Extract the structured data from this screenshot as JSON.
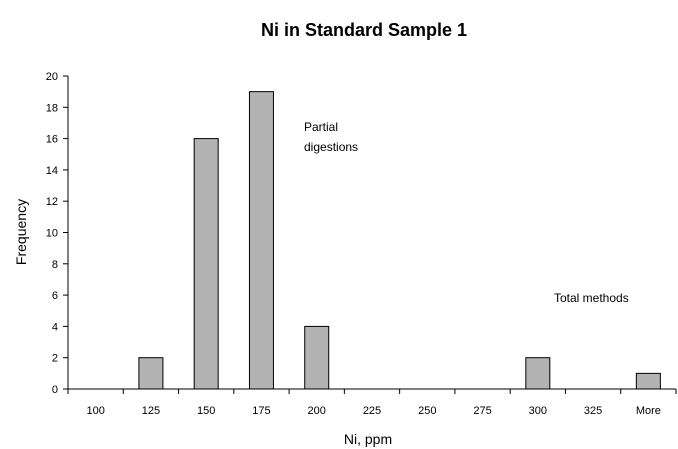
{
  "chart_data": {
    "type": "bar",
    "title": "Ni in Standard Sample 1",
    "xlabel": "Ni, ppm",
    "ylabel": "Frequency",
    "categories": [
      "100",
      "125",
      "150",
      "175",
      "200",
      "225",
      "250",
      "275",
      "300",
      "325",
      "More"
    ],
    "values": [
      0,
      2,
      16,
      19,
      4,
      0,
      0,
      0,
      2,
      0,
      1
    ],
    "ylim": [
      0,
      20
    ],
    "yticks": [
      "0",
      "2",
      "4",
      "6",
      "8",
      "10",
      "12",
      "14",
      "16",
      "18",
      "20"
    ],
    "annotations": [
      {
        "lines": [
          "Partial",
          "digestions"
        ]
      },
      {
        "lines": [
          "Total methods"
        ]
      }
    ],
    "colors": {
      "bar_fill": "#b3b3b3",
      "bar_stroke": "#000000"
    },
    "grid": false,
    "legend": "none"
  }
}
